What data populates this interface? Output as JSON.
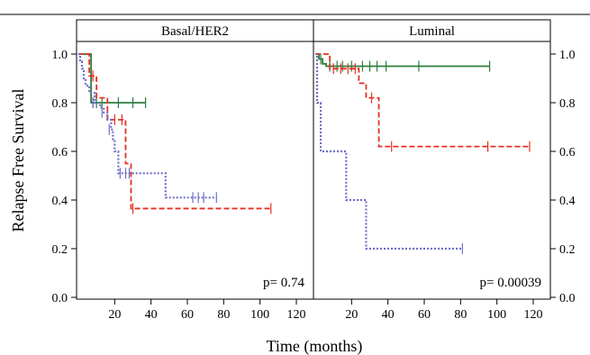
{
  "chart_data": {
    "type": "line",
    "step": true,
    "xlabel": "Time (months)",
    "ylabel": "Relapse Free Survival",
    "xlim": [
      0,
      130
    ],
    "ylim": [
      0,
      1.0
    ],
    "x_ticks": [
      20,
      40,
      60,
      80,
      100,
      120
    ],
    "y_ticks": [
      0.0,
      0.2,
      0.4,
      0.6,
      0.8,
      1.0
    ],
    "y_tick_labels": [
      "0.0",
      "0.2",
      "0.4",
      "0.6",
      "0.8",
      "1.0"
    ],
    "y_tick_labels_right": [
      "0.0",
      "0.2",
      "0.4",
      "0.6",
      "0.8",
      "1.0"
    ],
    "panels": [
      {
        "title": "Basal/HER2",
        "pvalue": "p= 0.74",
        "series": [
          {
            "color": "#2e7d3e",
            "dash": "solid",
            "x": [
              0,
              7,
              37
            ],
            "y": [
              1.0,
              0.8,
              0.8
            ],
            "censor_x": [
              8,
              10,
              13,
              22,
              30,
              37
            ],
            "censor_y": [
              0.8,
              0.8,
              0.8,
              0.8,
              0.8,
              0.8
            ]
          },
          {
            "color": "#e53024",
            "dash": "dashed",
            "x": [
              0,
              6,
              10,
              16,
              21,
              26,
              29,
              106
            ],
            "y": [
              1.0,
              0.91,
              0.82,
              0.73,
              0.73,
              0.55,
              0.365,
              0.365
            ],
            "censor_x": [
              8,
              20,
              24,
              30,
              106
            ],
            "censor_y": [
              0.91,
              0.73,
              0.73,
              0.365,
              0.365
            ]
          },
          {
            "color": "#6f6fc7",
            "dash": "dotted",
            "x": [
              0,
              1,
              2,
              3,
              4,
              6,
              9,
              12,
              14,
              16,
              18,
              19,
              20,
              22,
              27,
              33,
              48,
              76
            ],
            "y": [
              1.0,
              0.97,
              0.94,
              0.9,
              0.87,
              0.84,
              0.8,
              0.78,
              0.76,
              0.73,
              0.69,
              0.65,
              0.6,
              0.51,
              0.51,
              0.51,
              0.41,
              0.41
            ],
            "censor_x": [
              8,
              13,
              17,
              23,
              26,
              28,
              63,
              66,
              69,
              76
            ],
            "censor_y": [
              0.8,
              0.76,
              0.69,
              0.51,
              0.51,
              0.51,
              0.41,
              0.41,
              0.41,
              0.41
            ]
          }
        ]
      },
      {
        "title": "Luminal",
        "pvalue": "p= 0.00039",
        "series": [
          {
            "color": "#2e7d3e",
            "dash": "solid",
            "x": [
              0,
              2,
              4,
              6,
              96
            ],
            "y": [
              1.0,
              0.98,
              0.96,
              0.95,
              0.95
            ],
            "censor_x": [
              3,
              8,
              12,
              15,
              20,
              26,
              30,
              34,
              39,
              57,
              96
            ],
            "censor_y": [
              0.98,
              0.95,
              0.95,
              0.95,
              0.95,
              0.95,
              0.95,
              0.95,
              0.95,
              0.95,
              0.95
            ]
          },
          {
            "color": "#e53024",
            "dash": "dashed",
            "x": [
              0,
              8,
              24,
              28,
              35,
              118
            ],
            "y": [
              1.0,
              0.94,
              0.88,
              0.82,
              0.62,
              0.62
            ],
            "censor_x": [
              10,
              14,
              18,
              22,
              31,
              42,
              95,
              118
            ],
            "censor_y": [
              0.94,
              0.94,
              0.94,
              0.94,
              0.82,
              0.62,
              0.62,
              0.62
            ]
          },
          {
            "color": "#6f6fc7",
            "dash": "dotted",
            "x": [
              0,
              1,
              3,
              15,
              17,
              26,
              28,
              81
            ],
            "y": [
              1.0,
              0.8,
              0.6,
              0.6,
              0.4,
              0.4,
              0.2,
              0.2
            ],
            "censor_x": [
              81
            ],
            "censor_y": [
              0.2
            ]
          }
        ]
      }
    ]
  }
}
